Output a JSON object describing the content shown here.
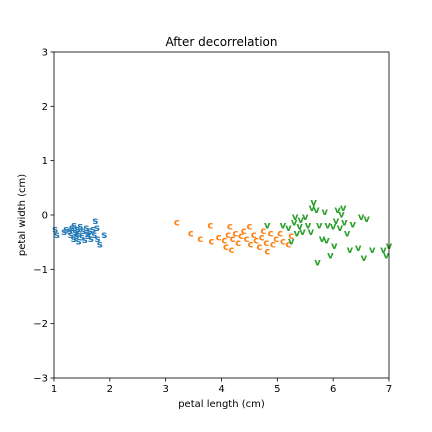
{
  "chart_data": {
    "type": "scatter",
    "title": "After decorrelation",
    "xlabel": "petal length (cm)",
    "ylabel": "petal width (cm)",
    "xlim": [
      1,
      7
    ],
    "ylim": [
      -3,
      3
    ],
    "xticks": [
      "1",
      "2",
      "3",
      "4",
      "5",
      "6",
      "7"
    ],
    "yticks": [
      "−3",
      "−2",
      "−1",
      "0",
      "1",
      "2",
      "3"
    ],
    "grid": false,
    "series": [
      {
        "marker": "s",
        "color": "#1f77b4",
        "points": [
          [
            1.02,
            -0.28
          ],
          [
            1.05,
            -0.38
          ],
          [
            1.18,
            -0.32
          ],
          [
            1.22,
            -0.28
          ],
          [
            1.28,
            -0.3
          ],
          [
            1.3,
            -0.38
          ],
          [
            1.32,
            -0.25
          ],
          [
            1.35,
            -0.45
          ],
          [
            1.36,
            -0.2
          ],
          [
            1.38,
            -0.33
          ],
          [
            1.4,
            -0.4
          ],
          [
            1.42,
            -0.28
          ],
          [
            1.44,
            -0.5
          ],
          [
            1.45,
            -0.35
          ],
          [
            1.47,
            -0.22
          ],
          [
            1.5,
            -0.42
          ],
          [
            1.52,
            -0.3
          ],
          [
            1.55,
            -0.47
          ],
          [
            1.58,
            -0.25
          ],
          [
            1.6,
            -0.36
          ],
          [
            1.62,
            -0.4
          ],
          [
            1.64,
            -0.3
          ],
          [
            1.66,
            -0.45
          ],
          [
            1.7,
            -0.28
          ],
          [
            1.72,
            -0.38
          ],
          [
            1.74,
            -0.12
          ],
          [
            1.77,
            -0.25
          ],
          [
            1.78,
            -0.45
          ],
          [
            1.82,
            -0.55
          ],
          [
            1.9,
            -0.38
          ]
        ]
      },
      {
        "marker": "c",
        "color": "#ff7f0e",
        "points": [
          [
            3.2,
            -0.15
          ],
          [
            3.45,
            -0.35
          ],
          [
            3.62,
            -0.45
          ],
          [
            3.8,
            -0.2
          ],
          [
            3.82,
            -0.5
          ],
          [
            3.95,
            -0.42
          ],
          [
            4.05,
            -0.48
          ],
          [
            4.08,
            -0.6
          ],
          [
            4.12,
            -0.38
          ],
          [
            4.15,
            -0.22
          ],
          [
            4.18,
            -0.65
          ],
          [
            4.2,
            -0.45
          ],
          [
            4.25,
            -0.35
          ],
          [
            4.3,
            -0.52
          ],
          [
            4.35,
            -0.4
          ],
          [
            4.4,
            -0.3
          ],
          [
            4.45,
            -0.45
          ],
          [
            4.5,
            -0.22
          ],
          [
            4.52,
            -0.55
          ],
          [
            4.58,
            -0.38
          ],
          [
            4.62,
            -0.48
          ],
          [
            4.68,
            -0.6
          ],
          [
            4.72,
            -0.42
          ],
          [
            4.75,
            -0.3
          ],
          [
            4.8,
            -0.52
          ],
          [
            4.82,
            -0.68
          ],
          [
            4.88,
            -0.35
          ],
          [
            4.92,
            -0.55
          ],
          [
            4.98,
            -0.45
          ],
          [
            5.05,
            -0.35
          ],
          [
            5.1,
            -0.5
          ],
          [
            5.2,
            -0.55
          ],
          [
            5.25,
            -0.4
          ]
        ]
      },
      {
        "marker": "v",
        "color": "#2ca02c",
        "points": [
          [
            4.82,
            -0.2
          ],
          [
            5.1,
            -0.2
          ],
          [
            5.2,
            -0.25
          ],
          [
            5.25,
            -0.5
          ],
          [
            5.3,
            -0.15
          ],
          [
            5.32,
            -0.05
          ],
          [
            5.35,
            -0.35
          ],
          [
            5.4,
            -0.22
          ],
          [
            5.42,
            -0.1
          ],
          [
            5.45,
            -0.32
          ],
          [
            5.5,
            -0.05
          ],
          [
            5.55,
            -0.2
          ],
          [
            5.6,
            -0.32
          ],
          [
            5.62,
            0.12
          ],
          [
            5.65,
            0.22
          ],
          [
            5.7,
            0.08
          ],
          [
            5.72,
            -0.88
          ],
          [
            5.75,
            -0.2
          ],
          [
            5.8,
            -0.45
          ],
          [
            5.85,
            0.05
          ],
          [
            5.88,
            -0.48
          ],
          [
            5.9,
            -0.2
          ],
          [
            5.95,
            -0.75
          ],
          [
            6.0,
            -0.22
          ],
          [
            6.02,
            -0.58
          ],
          [
            6.05,
            -0.12
          ],
          [
            6.08,
            0.08
          ],
          [
            6.12,
            -0.25
          ],
          [
            6.15,
            0.0
          ],
          [
            6.18,
            0.12
          ],
          [
            6.2,
            -0.15
          ],
          [
            6.25,
            -0.35
          ],
          [
            6.3,
            -0.65
          ],
          [
            6.35,
            -0.18
          ],
          [
            6.45,
            -0.62
          ],
          [
            6.5,
            -0.05
          ],
          [
            6.55,
            -0.8
          ],
          [
            6.6,
            -0.08
          ],
          [
            6.7,
            -0.65
          ],
          [
            6.9,
            -0.65
          ],
          [
            6.95,
            -0.75
          ],
          [
            7.0,
            -0.58
          ]
        ]
      }
    ]
  }
}
